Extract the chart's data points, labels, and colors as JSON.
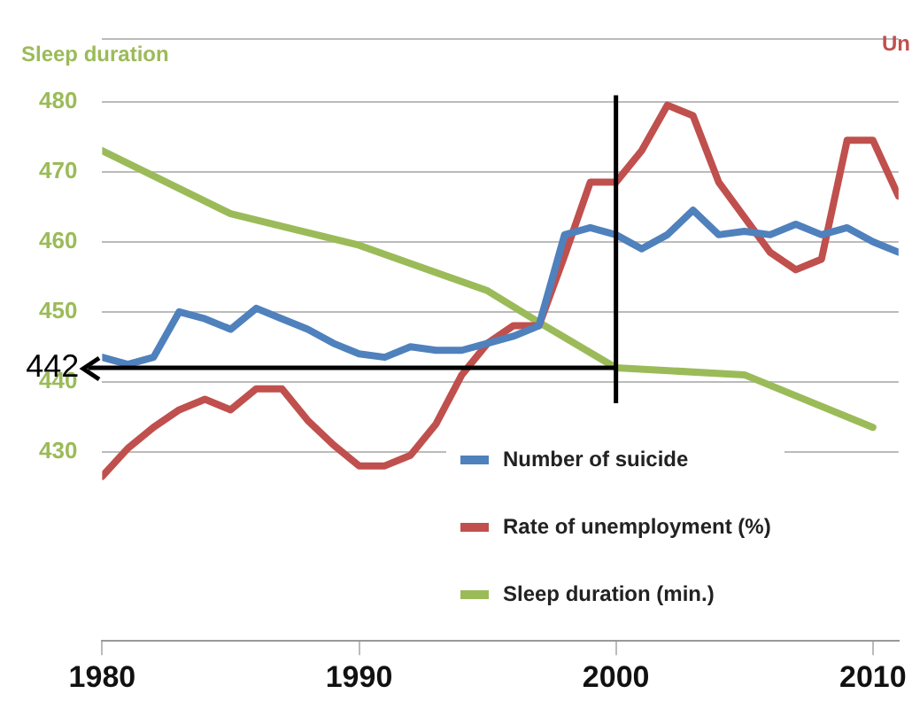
{
  "chart_data": {
    "type": "line",
    "ylabel": "Sleep duration",
    "annotations": [
      "Un"
    ],
    "xlim": [
      1980,
      2011
    ],
    "xticks": [
      1980,
      1990,
      2000,
      2010
    ],
    "ylim": [
      403,
      489
    ],
    "yticks": [
      430,
      440,
      450,
      460,
      470,
      480,
      {
        "value": 489,
        "label": null
      }
    ],
    "grid": "y",
    "legend": "bottom right",
    "marker": "none",
    "line_style": "solid",
    "series": [
      {
        "name": "Number of suicide",
        "color": "#4f81bd",
        "x": [
          1980,
          1981,
          1982,
          1983,
          1984,
          1985,
          1986,
          1987,
          1988,
          1989,
          1990,
          1991,
          1992,
          1993,
          1994,
          1995,
          1996,
          1997,
          1998,
          1999,
          2000,
          2001,
          2002,
          2003,
          2004,
          2005,
          2006,
          2007,
          2008,
          2009,
          2010,
          2011
        ],
        "values": [
          443.5,
          442.5,
          443.5,
          450,
          449,
          447.5,
          450.5,
          449,
          447.5,
          445.5,
          444,
          443.5,
          445,
          444.5,
          444.5,
          445.5,
          446.5,
          448,
          461,
          462,
          461,
          459,
          461,
          464.5,
          461,
          461.5,
          461,
          462.5,
          461,
          462,
          460,
          458.5
        ]
      },
      {
        "name": "Rate of unemployment (%)",
        "color": "#c0504d",
        "x": [
          1980,
          1981,
          1982,
          1983,
          1984,
          1985,
          1986,
          1987,
          1988,
          1989,
          1990,
          1991,
          1992,
          1993,
          1994,
          1995,
          1996,
          1997,
          1998,
          1999,
          2000,
          2001,
          2002,
          2003,
          2004,
          2005,
          2006,
          2007,
          2008,
          2009,
          2010,
          2011
        ],
        "values": [
          426.5,
          430.5,
          433.5,
          436,
          437.5,
          436,
          439,
          439,
          434.5,
          431,
          428,
          428,
          429.5,
          434,
          441,
          445.5,
          448,
          448,
          458,
          468.5,
          468.5,
          473,
          479.5,
          478,
          468.5,
          463.5,
          458.5,
          456,
          457.5,
          474.5,
          474.5,
          466.5
        ]
      },
      {
        "name": "Sleep duration (min.)",
        "color": "#9bbb59",
        "x": [
          1980,
          1985,
          1990,
          1995,
          1997,
          2000,
          2005,
          2010
        ],
        "values": [
          473,
          464,
          459.5,
          453,
          448.5,
          442,
          441,
          433.5
        ]
      }
    ],
    "ref_lines": [
      {
        "axis": "y",
        "value": 442,
        "label": "442",
        "color": "#000000"
      },
      {
        "axis": "x",
        "value": 2000,
        "color": "#000000"
      }
    ]
  }
}
